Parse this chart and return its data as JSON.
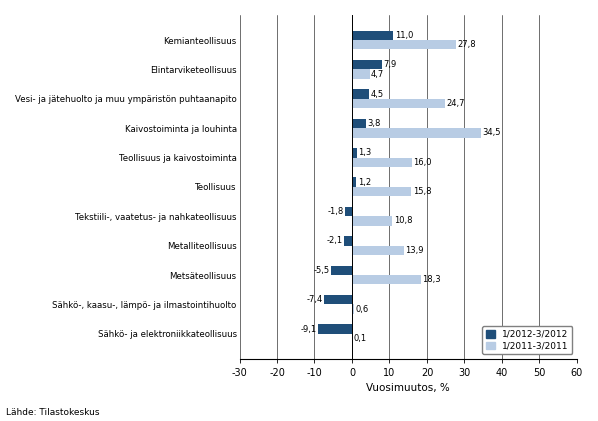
{
  "categories": [
    "Kemianteollisuus",
    "Elintarviketeollisuus",
    "Vesi- ja jätehuolto ja muu ympäristön puhtaanapito",
    "Kaivostoiminta ja louhinta",
    "Teollisuus ja kaivostoiminta",
    "Teollisuus",
    "Tekstiili-, vaatetus- ja nahkateollisuus",
    "Metalliteollisuus",
    "Metsäteollisuus",
    "Sähkö-, kaasu-, lämpö- ja ilmastointihuolto",
    "Sähkö- ja elektroniikkateollisuus"
  ],
  "series1": [
    11.0,
    7.9,
    4.5,
    3.8,
    1.3,
    1.2,
    -1.8,
    -2.1,
    -5.5,
    -7.4,
    -9.1
  ],
  "series2": [
    27.8,
    4.7,
    24.7,
    34.5,
    16.0,
    15.8,
    10.8,
    13.9,
    18.3,
    0.6,
    0.1
  ],
  "color1": "#1F4E79",
  "color2": "#B8CCE4",
  "legend1": "1/2012-3/2012",
  "legend2": "1/2011-3/2011",
  "xlabel": "Vuosimuutos, %",
  "xlim": [
    -30,
    60
  ],
  "xticks": [
    -30,
    -20,
    -10,
    0,
    10,
    20,
    30,
    40,
    50,
    60
  ],
  "footnote": "Lähde: Tilastokeskus",
  "bar_height": 0.32
}
